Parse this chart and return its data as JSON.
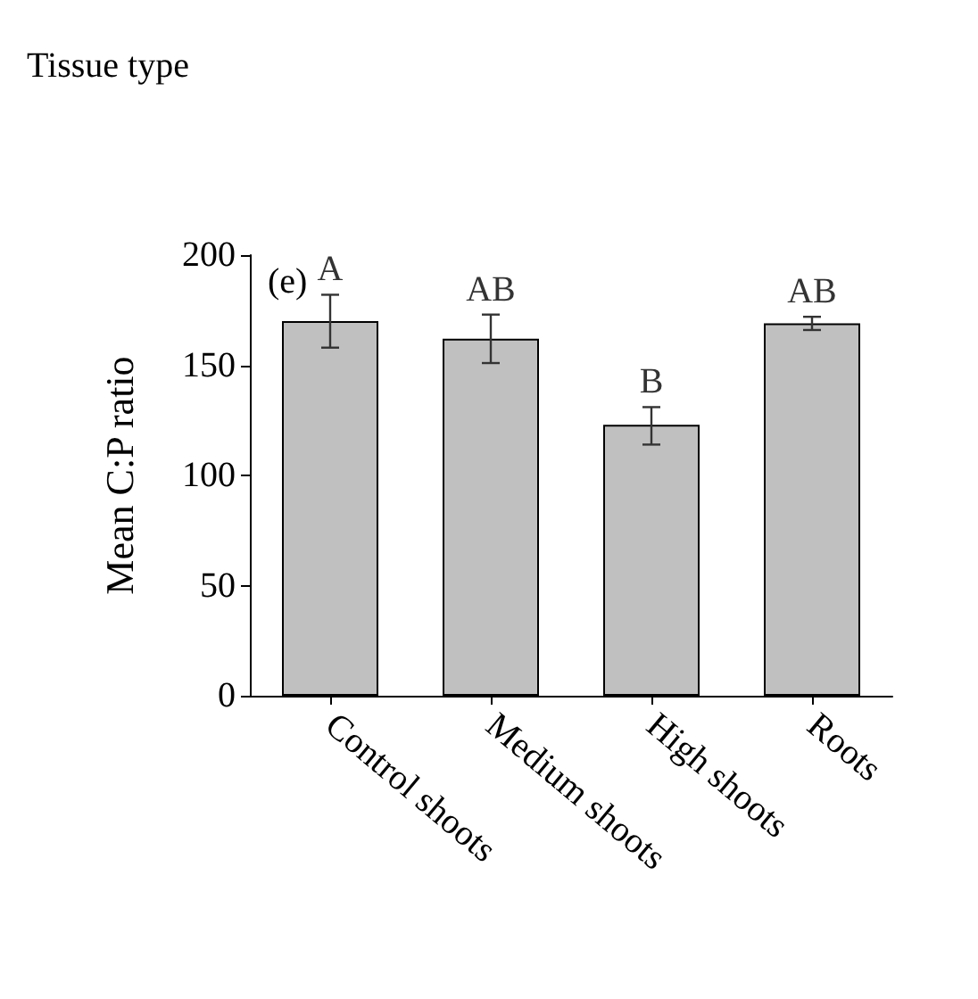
{
  "chart_data": {
    "type": "bar",
    "title": "Tissue type",
    "ylabel": "Mean C:P ratio",
    "categories": [
      "Control shoots",
      "Medium shoots",
      "High shoots",
      "Roots"
    ],
    "values": [
      170,
      162,
      123,
      169
    ],
    "color": "#c0c0c0",
    "errors": [
      [
        158,
        182
      ],
      [
        151,
        173
      ],
      [
        114,
        131
      ],
      [
        166,
        172
      ]
    ],
    "ylim": [
      0,
      200
    ],
    "yticks": [
      0,
      50,
      100,
      150,
      200
    ],
    "grid": false,
    "annotations": [
      "(e)",
      {
        "text": "A",
        "x": "Control shoots",
        "y": 182
      },
      {
        "text": "AB",
        "x": "Medium shoots",
        "y": 173
      },
      {
        "text": "B",
        "x": "High shoots",
        "y": 131
      },
      {
        "text": "AB",
        "x": "Roots",
        "y": 172
      }
    ]
  }
}
